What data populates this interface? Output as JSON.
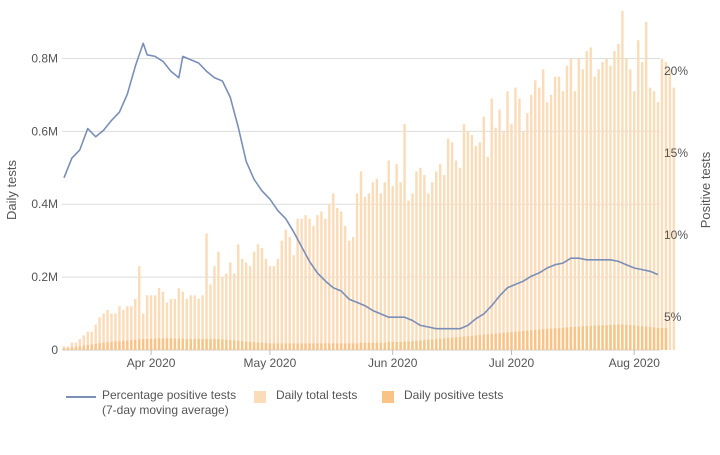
{
  "chart_data": {
    "type": "bar",
    "left_axis": {
      "title": "Daily tests",
      "range": [
        0,
        0.9
      ],
      "ticks": [
        0,
        0.2,
        0.4,
        0.6,
        0.8
      ],
      "tick_labels": [
        "0",
        "0.2M",
        "0.4M",
        "0.6M",
        "0.8M"
      ]
    },
    "right_axis": {
      "title": "Positive tests",
      "range": [
        3.0,
        23.0
      ],
      "ticks": [
        5,
        10,
        15,
        20
      ],
      "tick_labels": [
        "5%",
        "10%",
        "15%",
        "20%"
      ]
    },
    "x_axis": {
      "start_date": "2020-03-10",
      "end_date": "2020-08-07",
      "tick_dates": [
        "2020-04-01",
        "2020-05-01",
        "2020-06-01",
        "2020-07-01",
        "2020-08-01"
      ],
      "tick_labels": [
        "Apr 2020",
        "May 2020",
        "Jun 2020",
        "Jul 2020",
        "Aug 2020"
      ]
    },
    "gridlines": true,
    "legend_position": "bottom-left",
    "series": [
      {
        "name": "Percentage positive tests",
        "name_line2": "(7-day moving average)",
        "kind": "line",
        "axis": "right",
        "color": "#7a8fb8",
        "points": [
          [
            "2020-03-10",
            13.5
          ],
          [
            "2020-03-12",
            14.7
          ],
          [
            "2020-03-14",
            15.2
          ],
          [
            "2020-03-16",
            16.5
          ],
          [
            "2020-03-18",
            16.0
          ],
          [
            "2020-03-20",
            16.4
          ],
          [
            "2020-03-22",
            17.0
          ],
          [
            "2020-03-24",
            17.5
          ],
          [
            "2020-03-26",
            18.6
          ],
          [
            "2020-03-28",
            20.3
          ],
          [
            "2020-03-30",
            21.7
          ],
          [
            "2020-03-31",
            21.0
          ],
          [
            "2020-04-02",
            20.9
          ],
          [
            "2020-04-04",
            20.6
          ],
          [
            "2020-04-06",
            20.0
          ],
          [
            "2020-04-08",
            19.6
          ],
          [
            "2020-04-09",
            20.9
          ],
          [
            "2020-04-11",
            20.7
          ],
          [
            "2020-04-13",
            20.5
          ],
          [
            "2020-04-15",
            20.0
          ],
          [
            "2020-04-17",
            19.6
          ],
          [
            "2020-04-19",
            19.4
          ],
          [
            "2020-04-21",
            18.4
          ],
          [
            "2020-04-23",
            16.6
          ],
          [
            "2020-04-25",
            14.5
          ],
          [
            "2020-04-27",
            13.4
          ],
          [
            "2020-04-29",
            12.7
          ],
          [
            "2020-05-01",
            12.2
          ],
          [
            "2020-05-03",
            11.5
          ],
          [
            "2020-05-05",
            11.0
          ],
          [
            "2020-05-07",
            10.2
          ],
          [
            "2020-05-09",
            9.3
          ],
          [
            "2020-05-11",
            8.4
          ],
          [
            "2020-05-13",
            7.7
          ],
          [
            "2020-05-15",
            7.2
          ],
          [
            "2020-05-17",
            6.8
          ],
          [
            "2020-05-19",
            6.6
          ],
          [
            "2020-05-21",
            6.1
          ],
          [
            "2020-05-23",
            5.9
          ],
          [
            "2020-05-25",
            5.7
          ],
          [
            "2020-05-27",
            5.4
          ],
          [
            "2020-05-29",
            5.2
          ],
          [
            "2020-05-31",
            5.0
          ],
          [
            "2020-06-02",
            5.0
          ],
          [
            "2020-06-04",
            5.0
          ],
          [
            "2020-06-06",
            4.8
          ],
          [
            "2020-06-08",
            4.5
          ],
          [
            "2020-06-10",
            4.4
          ],
          [
            "2020-06-12",
            4.3
          ],
          [
            "2020-06-14",
            4.3
          ],
          [
            "2020-06-16",
            4.3
          ],
          [
            "2020-06-18",
            4.3
          ],
          [
            "2020-06-20",
            4.5
          ],
          [
            "2020-06-22",
            4.9
          ],
          [
            "2020-06-24",
            5.2
          ],
          [
            "2020-06-26",
            5.7
          ],
          [
            "2020-06-28",
            6.3
          ],
          [
            "2020-06-30",
            6.8
          ],
          [
            "2020-07-02",
            7.0
          ],
          [
            "2020-07-04",
            7.2
          ],
          [
            "2020-07-06",
            7.5
          ],
          [
            "2020-07-08",
            7.7
          ],
          [
            "2020-07-10",
            8.0
          ],
          [
            "2020-07-12",
            8.2
          ],
          [
            "2020-07-14",
            8.3
          ],
          [
            "2020-07-16",
            8.6
          ],
          [
            "2020-07-18",
            8.6
          ],
          [
            "2020-07-20",
            8.5
          ],
          [
            "2020-07-22",
            8.5
          ],
          [
            "2020-07-24",
            8.5
          ],
          [
            "2020-07-26",
            8.5
          ],
          [
            "2020-07-28",
            8.4
          ],
          [
            "2020-07-30",
            8.2
          ],
          [
            "2020-08-01",
            8.0
          ],
          [
            "2020-08-03",
            7.9
          ],
          [
            "2020-08-05",
            7.8
          ],
          [
            "2020-08-07",
            7.6
          ]
        ]
      },
      {
        "name": "Daily total tests",
        "kind": "bar",
        "axis": "left",
        "color": "#fbdcb9",
        "unit": "M",
        "values": [
          0.01,
          0.01,
          0.02,
          0.02,
          0.03,
          0.04,
          0.05,
          0.05,
          0.07,
          0.09,
          0.1,
          0.11,
          0.1,
          0.1,
          0.12,
          0.11,
          0.12,
          0.12,
          0.14,
          0.23,
          0.1,
          0.15,
          0.15,
          0.15,
          0.17,
          0.16,
          0.13,
          0.14,
          0.14,
          0.17,
          0.16,
          0.14,
          0.15,
          0.15,
          0.14,
          0.15,
          0.32,
          0.18,
          0.23,
          0.27,
          0.2,
          0.21,
          0.24,
          0.21,
          0.29,
          0.25,
          0.24,
          0.23,
          0.27,
          0.29,
          0.28,
          0.25,
          0.23,
          0.23,
          0.25,
          0.3,
          0.33,
          0.31,
          0.26,
          0.36,
          0.36,
          0.37,
          0.36,
          0.34,
          0.37,
          0.38,
          0.36,
          0.4,
          0.43,
          0.39,
          0.38,
          0.34,
          0.3,
          0.31,
          0.43,
          0.49,
          0.42,
          0.43,
          0.46,
          0.47,
          0.43,
          0.46,
          0.52,
          0.45,
          0.51,
          0.46,
          0.62,
          0.41,
          0.43,
          0.49,
          0.5,
          0.48,
          0.43,
          0.46,
          0.49,
          0.51,
          0.48,
          0.58,
          0.57,
          0.52,
          0.5,
          0.62,
          0.6,
          0.59,
          0.56,
          0.57,
          0.64,
          0.53,
          0.69,
          0.61,
          0.66,
          0.6,
          0.71,
          0.62,
          0.72,
          0.69,
          0.6,
          0.65,
          0.7,
          0.74,
          0.72,
          0.77,
          0.68,
          0.7,
          0.75,
          0.75,
          0.71,
          0.78,
          0.8,
          0.71,
          0.8,
          0.77,
          0.82,
          0.83,
          0.75,
          0.77,
          0.79,
          0.8,
          0.78,
          0.82,
          0.84,
          0.93,
          0.8,
          0.77,
          0.71,
          0.85,
          0.79,
          0.9,
          0.72,
          0.71,
          0.68,
          0.8,
          0.79,
          0.77,
          0.72
        ]
      },
      {
        "name": "Daily positive tests",
        "kind": "bar",
        "axis": "left",
        "color": "#f9c386",
        "unit": "M",
        "values": [
          0.005,
          0.005,
          0.007,
          0.008,
          0.01,
          0.012,
          0.014,
          0.015,
          0.017,
          0.019,
          0.02,
          0.021,
          0.022,
          0.023,
          0.024,
          0.025,
          0.026,
          0.027,
          0.028,
          0.029,
          0.03,
          0.03,
          0.031,
          0.031,
          0.032,
          0.032,
          0.032,
          0.032,
          0.031,
          0.031,
          0.031,
          0.03,
          0.03,
          0.03,
          0.03,
          0.03,
          0.03,
          0.03,
          0.03,
          0.03,
          0.029,
          0.028,
          0.027,
          0.026,
          0.025,
          0.024,
          0.023,
          0.022,
          0.021,
          0.02,
          0.02,
          0.019,
          0.018,
          0.018,
          0.018,
          0.018,
          0.018,
          0.018,
          0.018,
          0.018,
          0.018,
          0.018,
          0.018,
          0.018,
          0.018,
          0.018,
          0.018,
          0.018,
          0.018,
          0.018,
          0.018,
          0.018,
          0.018,
          0.018,
          0.018,
          0.02,
          0.02,
          0.02,
          0.02,
          0.02,
          0.02,
          0.02,
          0.022,
          0.022,
          0.022,
          0.022,
          0.023,
          0.023,
          0.024,
          0.025,
          0.026,
          0.027,
          0.028,
          0.029,
          0.03,
          0.031,
          0.032,
          0.033,
          0.034,
          0.035,
          0.036,
          0.037,
          0.038,
          0.039,
          0.04,
          0.041,
          0.042,
          0.043,
          0.044,
          0.045,
          0.046,
          0.047,
          0.048,
          0.049,
          0.05,
          0.051,
          0.052,
          0.053,
          0.054,
          0.055,
          0.056,
          0.057,
          0.058,
          0.059,
          0.06,
          0.06,
          0.061,
          0.062,
          0.063,
          0.063,
          0.064,
          0.065,
          0.066,
          0.066,
          0.067,
          0.067,
          0.068,
          0.068,
          0.069,
          0.069,
          0.07,
          0.07,
          0.069,
          0.068,
          0.067,
          0.066,
          0.065,
          0.064,
          0.063,
          0.062,
          0.061,
          0.06,
          0.06
        ]
      }
    ]
  }
}
